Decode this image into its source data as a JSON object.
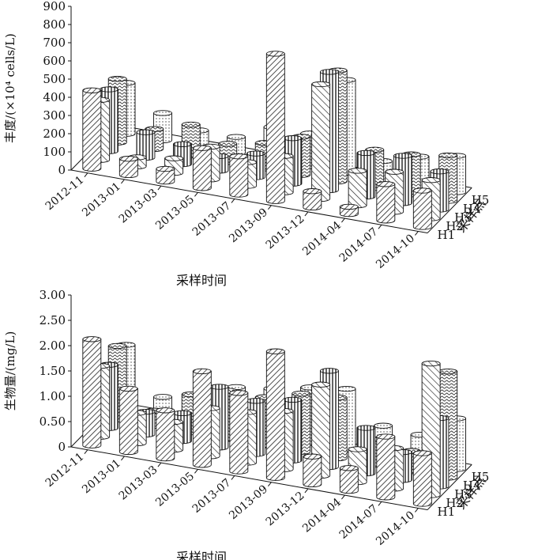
{
  "chart_data": [
    {
      "type": "bar",
      "ylabel": "丰度/(×10⁴ cells/L)",
      "xlabel": "采样时间",
      "zlabel": "采样点",
      "categories": [
        "2012-11",
        "2013-01",
        "2013-03",
        "2013-05",
        "2013-07",
        "2013-09",
        "2013-12",
        "2014-04",
        "2014-07",
        "2014-10"
      ],
      "yticks": [
        "0",
        "100",
        "200",
        "300",
        "400",
        "500",
        "600",
        "700",
        "800",
        "900"
      ],
      "ylim": [
        0,
        900
      ],
      "series": [
        {
          "name": "H1",
          "values": [
            430,
            90,
            70,
            220,
            210,
            810,
            90,
            40,
            200,
            200
          ]
        },
        {
          "name": "H2",
          "values": [
            330,
            50,
            80,
            180,
            130,
            200,
            630,
            190,
            220,
            210
          ]
        },
        {
          "name": "H3",
          "values": [
            340,
            140,
            110,
            80,
            130,
            250,
            650,
            240,
            260,
            210
          ]
        },
        {
          "name": "H4",
          "values": [
            350,
            110,
            170,
            100,
            140,
            210,
            610,
            210,
            220,
            250
          ]
        },
        {
          "name": "H5",
          "values": [
            280,
            150,
            90,
            90,
            180,
            180,
            510,
            100,
            160,
            200
          ]
        }
      ]
    },
    {
      "type": "bar",
      "ylabel": "生物量/(mg/L)",
      "xlabel": "采样时间",
      "zlabel": "采样点",
      "categories": [
        "2012-11",
        "2013-01",
        "2013-03",
        "2013-05",
        "2013-07",
        "2013-09",
        "2013-12",
        "2014-04",
        "2014-07",
        "2014-10"
      ],
      "yticks": [
        "0",
        "0.50",
        "1.00",
        "1.50",
        "2.00",
        "2.50",
        "3.00"
      ],
      "ylim": [
        0,
        3.0
      ],
      "series": [
        {
          "name": "H1",
          "values": [
            2.1,
            1.25,
            0.95,
            1.85,
            1.55,
            2.5,
            0.55,
            0.45,
            1.2,
            1.0
          ]
        },
        {
          "name": "H2",
          "values": [
            1.4,
            0.6,
            0.55,
            0.95,
            1.0,
            1.15,
            1.8,
            0.65,
            0.8,
            2.6
          ]
        },
        {
          "name": "H3",
          "values": [
            1.25,
            0.45,
            0.55,
            1.2,
            1.05,
            1.2,
            1.9,
            0.9,
            0.55,
            1.35
          ]
        },
        {
          "name": "H4",
          "values": [
            1.45,
            0.3,
            0.75,
            0.95,
            0.95,
            1.15,
            1.2,
            0.5,
            0.4,
            2.1
          ]
        },
        {
          "name": "H5",
          "values": [
            1.3,
            0.4,
            0.45,
            0.85,
            0.95,
            1.1,
            1.2,
            0.6,
            0.55,
            1.0
          ]
        }
      ]
    }
  ]
}
